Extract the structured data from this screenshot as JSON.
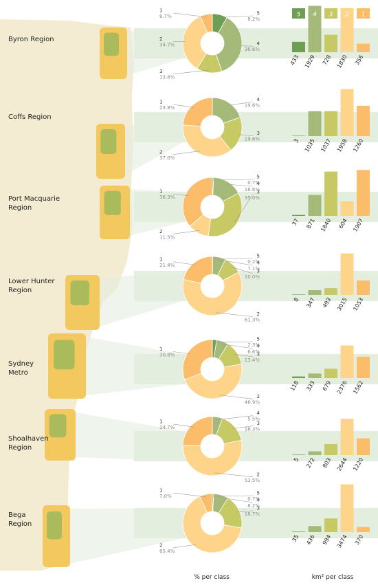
{
  "colors": {
    "class5": "#6e9e53",
    "class4": "#a5ba78",
    "class3": "#c7c965",
    "class2": "#fdd48a",
    "class1": "#fcbd6b",
    "band": "#e4eedf"
  },
  "legend": [
    "5",
    "4",
    "3",
    "2",
    "1"
  ],
  "footer": {
    "pie": "% per class",
    "bar": "km² per class"
  },
  "chart_data": [
    {
      "type": "pie",
      "region": "Byron Region",
      "labels": [
        "1",
        "2",
        "3",
        "4",
        "5"
      ],
      "values": [
        6.7,
        34.7,
        13.8,
        36.6,
        8.2
      ],
      "display": [
        "6.7%",
        "34.7%",
        "13.8%",
        "36.6%",
        "8.2%"
      ]
    },
    {
      "type": "pie",
      "region": "Coffs Region",
      "labels": [
        "1",
        "2",
        "3",
        "4"
      ],
      "values": [
        23.8,
        37.0,
        19.6,
        19.6
      ],
      "display": [
        "23.8%",
        "37.0%",
        "19.6%",
        "19.6%"
      ]
    },
    {
      "type": "pie",
      "region": "Port Macquarie Region",
      "labels": [
        "1",
        "2",
        "3",
        "4",
        "5"
      ],
      "values": [
        36.3,
        11.5,
        35.0,
        16.6,
        0.7
      ],
      "display": [
        "36.3%",
        "11.5%",
        "35.0%",
        "16.6%",
        "0.7%"
      ]
    },
    {
      "type": "pie",
      "region": "Lower Hunter Region",
      "labels": [
        "1",
        "2",
        "3",
        "4",
        "5"
      ],
      "values": [
        21.4,
        61.3,
        10.0,
        7.1,
        0.2
      ],
      "display": [
        "21.4%",
        "61.3%",
        "10.0%",
        "7.1%",
        "0.2%"
      ]
    },
    {
      "type": "pie",
      "region": "Sydney Metro",
      "labels": [
        "1",
        "2",
        "3",
        "4",
        "5"
      ],
      "values": [
        30.8,
        46.9,
        13.4,
        6.6,
        2.3
      ],
      "display": [
        "30.8%",
        "46.9%",
        "13.4%",
        "6.6%",
        "2.3%"
      ]
    },
    {
      "type": "pie",
      "region": "Shoalhaven Region",
      "labels": [
        "1",
        "2",
        "3",
        "4"
      ],
      "values": [
        24.7,
        53.5,
        16.3,
        5.5
      ],
      "display": [
        "24.7%",
        "53.5%",
        "16.3%",
        "5.5%"
      ]
    },
    {
      "type": "pie",
      "region": "Bega Region",
      "labels": [
        "1",
        "2",
        "3",
        "4",
        "5"
      ],
      "values": [
        7.0,
        65.4,
        18.7,
        8.2,
        0.7
      ],
      "display": [
        "7.0%",
        "65.4%",
        "18.7%",
        "8.2%",
        "0.7%"
      ]
    },
    {
      "type": "bar",
      "region": "Byron Region",
      "categories": [
        "5",
        "4",
        "3",
        "2",
        "1"
      ],
      "values": [
        433,
        1929,
        728,
        1830,
        356
      ]
    },
    {
      "type": "bar",
      "region": "Coffs Region",
      "categories": [
        "5",
        "4",
        "3",
        "2",
        "1"
      ],
      "values": [
        3,
        1035,
        1037,
        1958,
        1260
      ]
    },
    {
      "type": "bar",
      "region": "Port Macquarie Region",
      "categories": [
        "5",
        "4",
        "3",
        "2",
        "1"
      ],
      "values": [
        37,
        871,
        1840,
        604,
        1907
      ]
    },
    {
      "type": "bar",
      "region": "Lower Hunter Region",
      "categories": [
        "5",
        "4",
        "3",
        "2",
        "1"
      ],
      "values": [
        8,
        347,
        493,
        3015,
        1053
      ]
    },
    {
      "type": "bar",
      "region": "Sydney Metro",
      "categories": [
        "5",
        "4",
        "3",
        "2",
        "1"
      ],
      "values": [
        118,
        333,
        679,
        2376,
        1562
      ]
    },
    {
      "type": "bar",
      "region": "Shoalhaven Region",
      "categories": [
        "5",
        "4",
        "3",
        "2",
        "1"
      ],
      "values": [
        5,
        272,
        803,
        2644,
        1220
      ]
    },
    {
      "type": "bar",
      "region": "Bega Region",
      "categories": [
        "5",
        "4",
        "3",
        "2",
        "1"
      ],
      "values": [
        35,
        436,
        994,
        3474,
        370
      ]
    }
  ]
}
